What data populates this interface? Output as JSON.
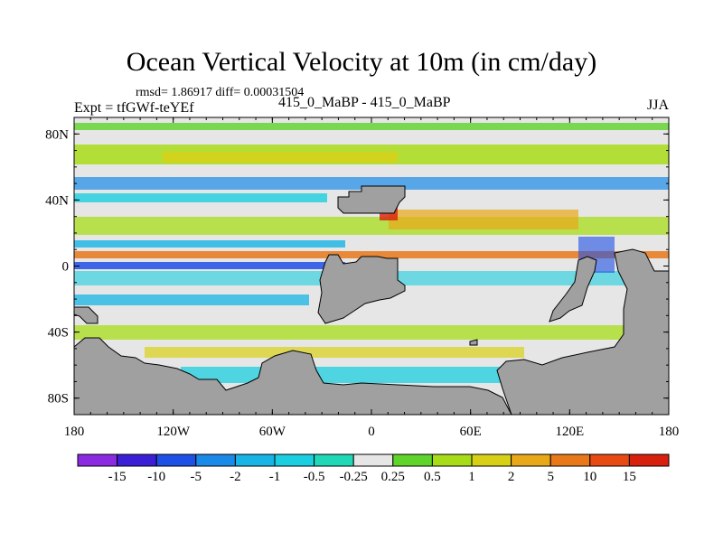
{
  "header": {
    "title": "Ocean Vertical Velocity at 10m (in cm/day)",
    "stats": "rmsd= 1.86917 diff= 0.00031504",
    "experiment": "Expt = tfGWf-teYEf",
    "center_label": "415_0_MaBP - 415_0_MaBP",
    "season": "JJA"
  },
  "axes": {
    "x_ticks": [
      "180",
      "120W",
      "60W",
      "0",
      "60E",
      "120E",
      "180"
    ],
    "y_ticks": [
      "80N",
      "40N",
      "0",
      "40S",
      "80S"
    ],
    "lon_values": [
      -180,
      -120,
      -60,
      0,
      60,
      120,
      180
    ],
    "lat_values": [
      80,
      40,
      0,
      -40,
      -80
    ],
    "lon_range": [
      -180,
      180
    ],
    "lat_range": [
      -90,
      90
    ]
  },
  "colorbar": {
    "labels": [
      "-15",
      "-10",
      "-5",
      "-2",
      "-1",
      "-0.5",
      "-0.25",
      "0.25",
      "0.5",
      "1",
      "2",
      "5",
      "10",
      "15"
    ],
    "colors": [
      "#8a2be2",
      "#3b1fd6",
      "#1e50e6",
      "#1a8ae8",
      "#18b4e6",
      "#1ccfe0",
      "#20d8b8",
      "#e6e6e6",
      "#5fd42a",
      "#a8dc18",
      "#d8d016",
      "#e8a81a",
      "#e8781a",
      "#e84a14",
      "#d8200e"
    ]
  },
  "colors": {
    "land": "#a0a0a0",
    "neutral": "#e6e6e6"
  }
}
